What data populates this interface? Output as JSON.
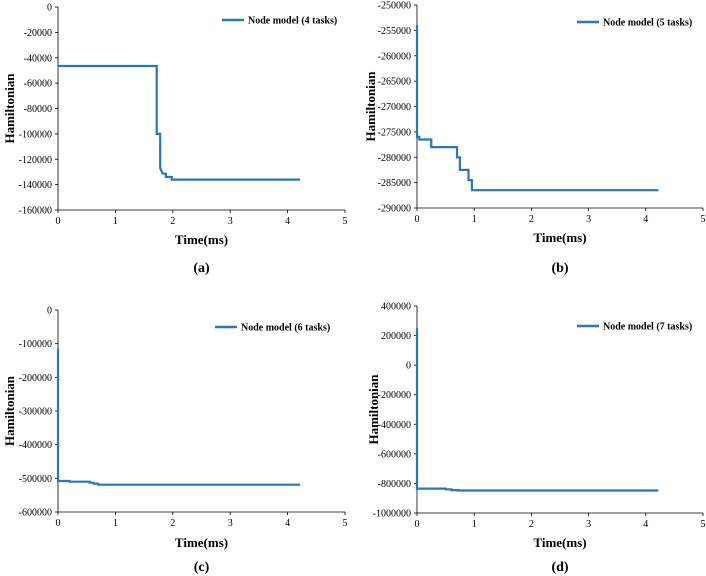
{
  "chart_data": [
    {
      "type": "line",
      "panel": "a",
      "caption": "(a)",
      "xlabel": "Time(ms)",
      "ylabel": "Hamiltonian",
      "xlim": [
        0,
        5
      ],
      "ylim": [
        -160000,
        0
      ],
      "xticks": [
        0,
        1,
        2,
        3,
        4,
        5
      ],
      "yticks": [
        0,
        -20000,
        -40000,
        -60000,
        -80000,
        -100000,
        -120000,
        -140000,
        -160000
      ],
      "legend": "top-right",
      "color": "#2e75b6",
      "series": [
        {
          "name": "Node model (4 tasks)",
          "x": [
            0,
            1.72,
            1.72,
            1.78,
            1.78,
            1.82,
            1.85,
            1.88,
            1.88,
            1.98,
            1.98,
            4.22
          ],
          "y": [
            -46500,
            -46500,
            -100000,
            -100000,
            -127000,
            -131000,
            -131500,
            -131500,
            -134000,
            -134000,
            -136000,
            -136000
          ]
        }
      ]
    },
    {
      "type": "line",
      "panel": "b",
      "caption": "(b)",
      "xlabel": "Time(ms)",
      "ylabel": "Hamiltonian",
      "xlim": [
        0,
        5
      ],
      "ylim": [
        -290000,
        -250000
      ],
      "xticks": [
        0,
        1,
        2,
        3,
        4,
        5
      ],
      "yticks": [
        -250000,
        -255000,
        -260000,
        -265000,
        -270000,
        -275000,
        -280000,
        -285000,
        -290000
      ],
      "legend": "top-right",
      "color": "#2e75b6",
      "series": [
        {
          "name": "Node model (5 tasks)",
          "x": [
            0,
            0,
            0.04,
            0.04,
            0.25,
            0.25,
            0.7,
            0.7,
            0.75,
            0.75,
            0.9,
            0.9,
            0.96,
            0.96,
            4.22
          ],
          "y": [
            -254000,
            -276000,
            -276000,
            -276500,
            -276500,
            -278000,
            -278000,
            -280000,
            -280000,
            -282500,
            -282500,
            -284500,
            -284500,
            -286500,
            -286500
          ]
        }
      ]
    },
    {
      "type": "line",
      "panel": "c",
      "caption": "(c)",
      "xlabel": "Time(ms)",
      "ylabel": "Hamiltonian",
      "xlim": [
        0,
        5
      ],
      "ylim": [
        -600000,
        0
      ],
      "xticks": [
        0,
        1,
        2,
        3,
        4,
        5
      ],
      "yticks": [
        0,
        -100000,
        -200000,
        -300000,
        -400000,
        -500000,
        -600000
      ],
      "legend": "top-right",
      "color": "#2e75b6",
      "series": [
        {
          "name": "Node model (6 tasks)",
          "x": [
            0,
            0,
            0.2,
            0.2,
            0.55,
            0.55,
            0.62,
            0.62,
            0.7,
            0.7,
            4.22
          ],
          "y": [
            -115000,
            -508000,
            -508000,
            -510000,
            -510000,
            -513000,
            -513000,
            -516000,
            -516000,
            -519000,
            -519000
          ]
        }
      ]
    },
    {
      "type": "line",
      "panel": "d",
      "caption": "(d)",
      "xlabel": "Time(ms)",
      "ylabel": "Hamiltonian",
      "xlim": [
        0,
        5
      ],
      "ylim": [
        -1000000,
        400000
      ],
      "xticks": [
        0,
        1,
        2,
        3,
        4,
        5
      ],
      "yticks": [
        400000,
        200000,
        0,
        -200000,
        -400000,
        -600000,
        -800000,
        -1000000
      ],
      "legend": "top-right",
      "color": "#2e75b6",
      "series": [
        {
          "name": "Node model (7 tasks)",
          "x": [
            0,
            0,
            0.5,
            0.5,
            0.6,
            0.6,
            0.72,
            0.72,
            4.22
          ],
          "y": [
            250000,
            -835000,
            -835000,
            -840000,
            -840000,
            -845000,
            -845000,
            -848000,
            -848000
          ]
        }
      ]
    }
  ]
}
